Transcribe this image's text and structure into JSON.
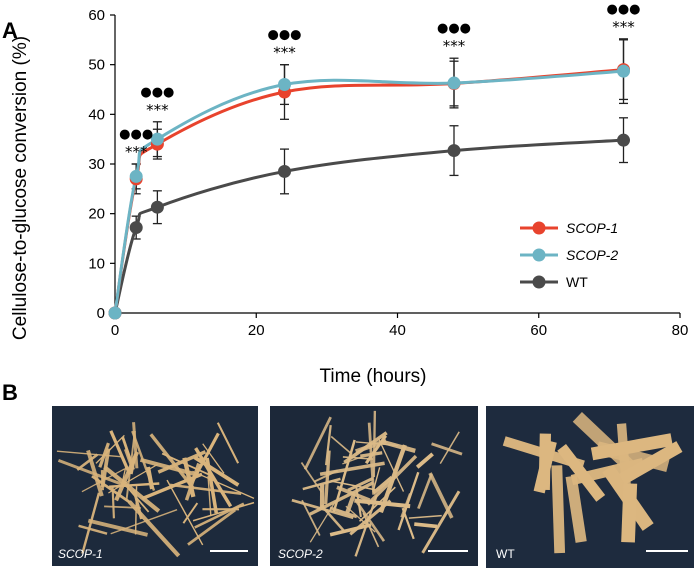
{
  "panels": {
    "a": "A",
    "b": "B"
  },
  "chart_data": {
    "type": "line",
    "xlabel": "Time (hours)",
    "ylabel": "Cellulose-to-glucose conversion (%)",
    "xlim": [
      0,
      80
    ],
    "ylim": [
      0,
      60
    ],
    "xticks": [
      0,
      20,
      40,
      60,
      80
    ],
    "yticks": [
      0,
      10,
      20,
      30,
      40,
      50,
      60
    ],
    "grid": false,
    "legend_position": "right",
    "x": [
      0,
      3,
      6,
      24,
      48,
      72
    ],
    "series": [
      {
        "name": "SCOP-1",
        "color": "#e8432d",
        "values": [
          0,
          27,
          34,
          44.5,
          46.2,
          49
        ],
        "errors": [
          0,
          3,
          3,
          5.5,
          4.5,
          6
        ]
      },
      {
        "name": "SCOP-2",
        "color": "#6cb4c4",
        "values": [
          0,
          27.5,
          35,
          46,
          46.3,
          48.7
        ],
        "errors": [
          0,
          2.5,
          3.5,
          4,
          5,
          6.5
        ]
      },
      {
        "name": "WT",
        "color": "#4a4a4a",
        "values": [
          0,
          17.2,
          21.3,
          28.5,
          32.7,
          34.8
        ],
        "errors": [
          0,
          2.3,
          3.3,
          4.5,
          5,
          4.5
        ]
      }
    ],
    "annotations": [
      {
        "x": 3,
        "stars": "***",
        "dots": "●●●"
      },
      {
        "x": 6,
        "stars": "***",
        "dots": "●●●"
      },
      {
        "x": 24,
        "stars": "***",
        "dots": "●●●"
      },
      {
        "x": 48,
        "stars": "***",
        "dots": "●●●"
      },
      {
        "x": 72,
        "stars": "***",
        "dots": "●●●"
      }
    ]
  },
  "photos": [
    {
      "label": "SCOP-1",
      "bg": "#1d2a3c",
      "straw": "#d9b47c"
    },
    {
      "label": "SCOP-2",
      "bg": "#1c2839",
      "straw": "#dcbb88"
    },
    {
      "label": "WT",
      "bg": "#1e2b3e",
      "straw": "#dcb780"
    }
  ]
}
